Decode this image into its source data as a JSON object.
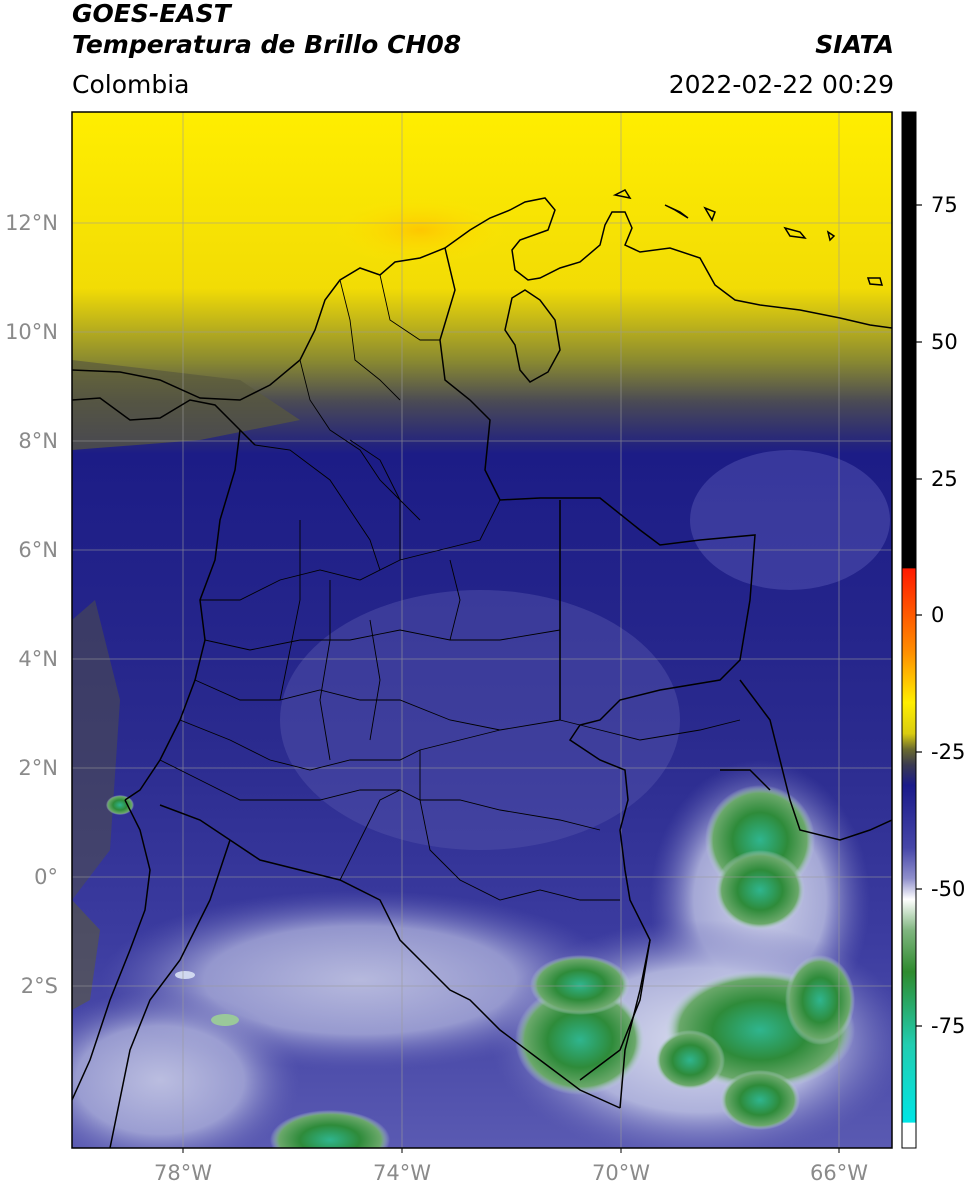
{
  "header": {
    "title_line1": "GOES-EAST",
    "title_line2": "Temperatura de Brillo CH08",
    "right_title": "SIATA",
    "subtitle": "Colombia",
    "datetime": "2022-02-22 00:29"
  },
  "map": {
    "latitude_labels": [
      "12°N",
      "10°N",
      "8°N",
      "6°N",
      "4°N",
      "2°N",
      "0°",
      "2°S"
    ],
    "longitude_labels": [
      "78°W",
      "74°W",
      "70°W",
      "66°W"
    ],
    "gridlines": true
  },
  "colorbar": {
    "tick_labels": [
      "75",
      "50",
      "25",
      "0",
      "-25",
      "-50",
      "-75"
    ],
    "tick_values": [
      75,
      50,
      25,
      0,
      -25,
      -50,
      -75
    ],
    "range": [
      -95,
      90
    ],
    "colors": {
      "warm_black": "#000000",
      "red": "#ff2200",
      "orange": "#ff8c00",
      "yellow": "#ffee00",
      "olive": "#6b6b2e",
      "navy": "#1a1a8a",
      "periwinkle": "#8080c8",
      "white": "#ffffff",
      "green": "#2e8b2e",
      "teal": "#22cdb0",
      "cyan": "#00e5e5"
    }
  }
}
